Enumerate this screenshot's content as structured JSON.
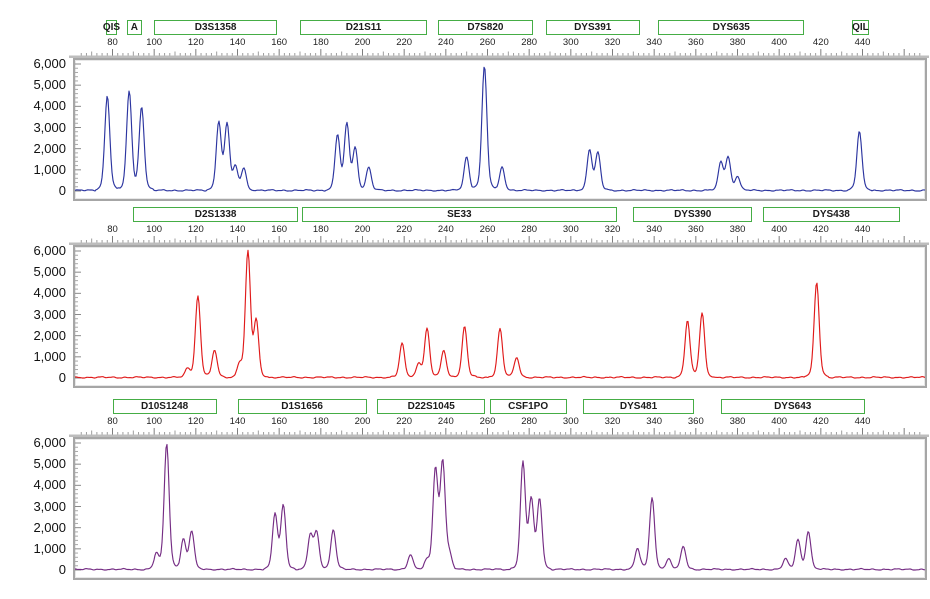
{
  "figure": {
    "type": "electropherogram",
    "panel_count": 3,
    "y_unit": "RFU",
    "x_unit": "bp"
  },
  "axes": {
    "y_tick_labels": [
      "6,000",
      "5,000",
      "4,000",
      "3,000",
      "2,000",
      "1,000",
      "0"
    ],
    "y_tick_values": [
      6000,
      5000,
      4000,
      3000,
      2000,
      1000,
      0
    ],
    "y_minor_step": 200,
    "y_range": [
      0,
      6000
    ],
    "x_tick_values": [
      80,
      100,
      120,
      140,
      160,
      180,
      200,
      220,
      240,
      260,
      280,
      300,
      320,
      340,
      360,
      380,
      400,
      420,
      440
    ],
    "x_minor_step": 2.5,
    "x_range_bp": [
      62,
      470
    ],
    "marker_box_border_color": "#45AD45",
    "panel_border_color": "#a6a6a6"
  },
  "chart_data": [
    {
      "name": "panel-1",
      "type": "line",
      "trace_color": "#2C35A0",
      "ylim": [
        0,
        6000
      ],
      "markers": [
        {
          "label": "QIS",
          "start": 77,
          "end": 82
        },
        {
          "label": "A",
          "start": 87,
          "end": 94
        },
        {
          "label": "D3S1358",
          "start": 100,
          "end": 159
        },
        {
          "label": "D21S11",
          "start": 170,
          "end": 231
        },
        {
          "label": "D7S820",
          "start": 236,
          "end": 282
        },
        {
          "label": "DYS391",
          "start": 288,
          "end": 333
        },
        {
          "label": "DYS635",
          "start": 342,
          "end": 412
        },
        {
          "label": "QIL",
          "start": 435,
          "end": 443
        }
      ],
      "peaks": [
        {
          "bp": 77.5,
          "rfu": 4500
        },
        {
          "bp": 88,
          "rfu": 4700
        },
        {
          "bp": 94,
          "rfu": 3950
        },
        {
          "bp": 131,
          "rfu": 3200
        },
        {
          "bp": 135,
          "rfu": 3100
        },
        {
          "bp": 139,
          "rfu": 1050
        },
        {
          "bp": 143,
          "rfu": 1050
        },
        {
          "bp": 188,
          "rfu": 2600
        },
        {
          "bp": 192.5,
          "rfu": 3100
        },
        {
          "bp": 196.5,
          "rfu": 1950
        },
        {
          "bp": 203,
          "rfu": 1100
        },
        {
          "bp": 250,
          "rfu": 1600
        },
        {
          "bp": 258.5,
          "rfu": 5900
        },
        {
          "bp": 267,
          "rfu": 1100
        },
        {
          "bp": 309,
          "rfu": 1900
        },
        {
          "bp": 313,
          "rfu": 1750
        },
        {
          "bp": 372,
          "rfu": 1300
        },
        {
          "bp": 375.5,
          "rfu": 1550
        },
        {
          "bp": 380,
          "rfu": 650
        },
        {
          "bp": 438.5,
          "rfu": 2800
        }
      ]
    },
    {
      "name": "panel-2",
      "type": "line",
      "trace_color": "#E01A1A",
      "ylim": [
        0,
        6000
      ],
      "markers": [
        {
          "label": "D2S1338",
          "start": 90,
          "end": 169
        },
        {
          "label": "SE33",
          "start": 171,
          "end": 322
        },
        {
          "label": "DYS390",
          "start": 330,
          "end": 387
        },
        {
          "label": "DYS438",
          "start": 392,
          "end": 458
        }
      ],
      "peaks": [
        {
          "bp": 116,
          "rfu": 400
        },
        {
          "bp": 121,
          "rfu": 3850
        },
        {
          "bp": 129,
          "rfu": 1300
        },
        {
          "bp": 141,
          "rfu": 600
        },
        {
          "bp": 145,
          "rfu": 5900
        },
        {
          "bp": 149,
          "rfu": 2600
        },
        {
          "bp": 219,
          "rfu": 1600
        },
        {
          "bp": 227,
          "rfu": 650
        },
        {
          "bp": 231,
          "rfu": 2300
        },
        {
          "bp": 239,
          "rfu": 1300
        },
        {
          "bp": 249,
          "rfu": 2400
        },
        {
          "bp": 266,
          "rfu": 2300
        },
        {
          "bp": 274,
          "rfu": 950
        },
        {
          "bp": 356,
          "rfu": 2700
        },
        {
          "bp": 363,
          "rfu": 3050
        },
        {
          "bp": 418,
          "rfu": 4500
        }
      ]
    },
    {
      "name": "panel-3",
      "type": "line",
      "trace_color": "#752D84",
      "ylim": [
        0,
        6000
      ],
      "markers": [
        {
          "label": "D10S1248",
          "start": 80,
          "end": 130
        },
        {
          "label": "D1S1656",
          "start": 140,
          "end": 202
        },
        {
          "label": "D22S1045",
          "start": 207,
          "end": 259
        },
        {
          "label": "CSF1PO",
          "start": 261,
          "end": 298
        },
        {
          "label": "DYS481",
          "start": 306,
          "end": 359
        },
        {
          "label": "DYS643",
          "start": 372,
          "end": 441
        }
      ],
      "peaks": [
        {
          "bp": 101,
          "rfu": 700
        },
        {
          "bp": 106,
          "rfu": 5950
        },
        {
          "bp": 114,
          "rfu": 1400
        },
        {
          "bp": 118,
          "rfu": 1800
        },
        {
          "bp": 158,
          "rfu": 2600
        },
        {
          "bp": 162,
          "rfu": 3000
        },
        {
          "bp": 175,
          "rfu": 1600
        },
        {
          "bp": 178,
          "rfu": 1700
        },
        {
          "bp": 186,
          "rfu": 1900
        },
        {
          "bp": 223,
          "rfu": 700
        },
        {
          "bp": 231,
          "rfu": 400
        },
        {
          "bp": 235,
          "rfu": 4650
        },
        {
          "bp": 238.5,
          "rfu": 5000
        },
        {
          "bp": 241.5,
          "rfu": 700
        },
        {
          "bp": 277,
          "rfu": 5000
        },
        {
          "bp": 281,
          "rfu": 3200
        },
        {
          "bp": 285,
          "rfu": 3300
        },
        {
          "bp": 332,
          "rfu": 1000
        },
        {
          "bp": 339,
          "rfu": 3400
        },
        {
          "bp": 347,
          "rfu": 500
        },
        {
          "bp": 354,
          "rfu": 1100
        },
        {
          "bp": 403,
          "rfu": 500
        },
        {
          "bp": 409,
          "rfu": 1400
        },
        {
          "bp": 414,
          "rfu": 1800
        }
      ]
    }
  ]
}
